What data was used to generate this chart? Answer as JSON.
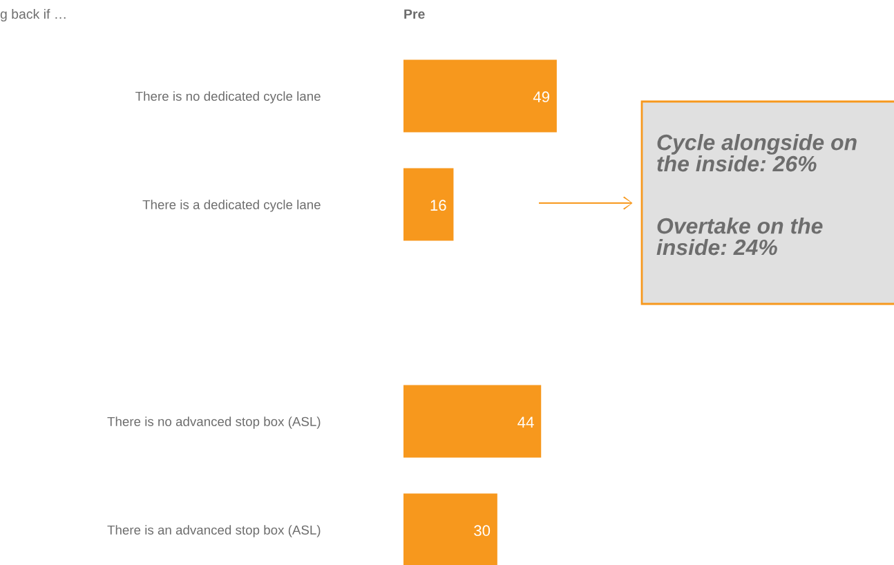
{
  "chart_data": {
    "type": "bar",
    "orientation": "horizontal",
    "title": "Pre",
    "subtitle": "g back if …",
    "categories": [
      "There is no dedicated cycle lane",
      "There is a dedicated cycle lane",
      null,
      "There is no advanced stop box (ASL)",
      "There is an advanced stop box (ASL)"
    ],
    "values": [
      49,
      16,
      null,
      44,
      30
    ],
    "color": "#f7981d",
    "data_labels": true,
    "grid": false,
    "annotations": [
      "Cycle alongside on the inside: 26%",
      "Overtake on the inside: 24%"
    ]
  }
}
